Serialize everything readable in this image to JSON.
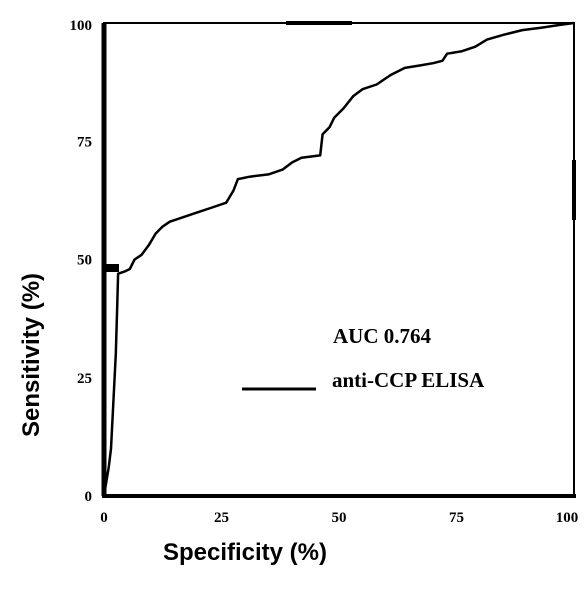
{
  "chart_data": {
    "type": "line",
    "title": "",
    "xlabel": "Specificity (%)",
    "ylabel": "Sensitivity (%)",
    "xlim": [
      0,
      100
    ],
    "ylim": [
      0,
      100
    ],
    "xticks": [
      0,
      25,
      50,
      75,
      100
    ],
    "yticks": [
      0,
      25,
      50,
      75,
      100
    ],
    "xtick_labels": [
      "0",
      "25",
      "50",
      "75",
      "100"
    ],
    "ytick_labels": [
      "0",
      "25",
      "50",
      "75",
      "100"
    ],
    "grid": false,
    "legend_position": "right-center",
    "annotation": "AUC 0.764",
    "series": [
      {
        "name": "anti-CCP ELISA",
        "color": "#000000",
        "points": [
          [
            0,
            0
          ],
          [
            0.5,
            3
          ],
          [
            1,
            6
          ],
          [
            1.5,
            10
          ],
          [
            2,
            20
          ],
          [
            2.5,
            30
          ],
          [
            2.8,
            40
          ],
          [
            3,
            47
          ],
          [
            4.5,
            47.5
          ],
          [
            5.5,
            48
          ],
          [
            6.5,
            50
          ],
          [
            8,
            51
          ],
          [
            9.5,
            53
          ],
          [
            11,
            55.5
          ],
          [
            12.5,
            57
          ],
          [
            14,
            58
          ],
          [
            17,
            59
          ],
          [
            20,
            60
          ],
          [
            23,
            61
          ],
          [
            26,
            62
          ],
          [
            27.5,
            64.5
          ],
          [
            28.5,
            67
          ],
          [
            31,
            67.5
          ],
          [
            35,
            68
          ],
          [
            38,
            69
          ],
          [
            40,
            70.5
          ],
          [
            42,
            71.5
          ],
          [
            46,
            72
          ],
          [
            46.5,
            76.5
          ],
          [
            48,
            78
          ],
          [
            49,
            80
          ],
          [
            51,
            82
          ],
          [
            53,
            84.5
          ],
          [
            55,
            86
          ],
          [
            58,
            87
          ],
          [
            61,
            89
          ],
          [
            64,
            90.5
          ],
          [
            67,
            91
          ],
          [
            70,
            91.5
          ],
          [
            72,
            92
          ],
          [
            73,
            93.5
          ],
          [
            76,
            94
          ],
          [
            79,
            95
          ],
          [
            81.5,
            96.5
          ],
          [
            85,
            97.5
          ],
          [
            89,
            98.5
          ],
          [
            93,
            99
          ],
          [
            97,
            99.6
          ],
          [
            100,
            100
          ]
        ]
      }
    ]
  }
}
